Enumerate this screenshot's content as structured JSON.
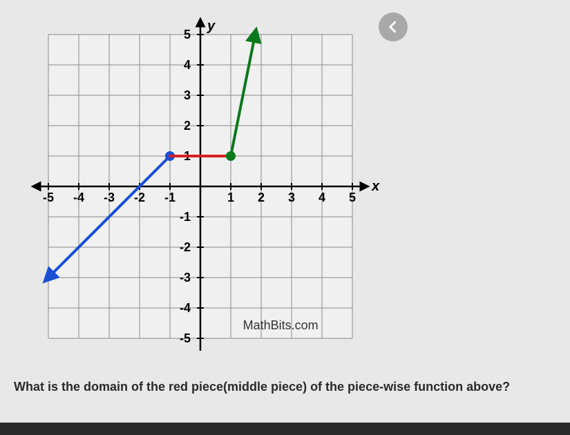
{
  "chart": {
    "type": "line",
    "xlim": [
      -5,
      5
    ],
    "ylim": [
      -5,
      5
    ],
    "xtick_step": 1,
    "ytick_step": 1,
    "x_axis_label": "x",
    "y_axis_label": "y",
    "grid_color": "#888888",
    "axis_color": "#000000",
    "background_color": "#f0f0f0",
    "watermark": "MathBits.com",
    "ticks_x": [
      "-5",
      "-4",
      "-3",
      "-2",
      "-1",
      "1",
      "2",
      "3",
      "4",
      "5"
    ],
    "ticks_y": [
      "5",
      "4",
      "3",
      "2",
      "1",
      "-1",
      "-2",
      "-3",
      "-4",
      "-5"
    ],
    "pieces": [
      {
        "name": "blue-piece",
        "color": "#1a4fd6",
        "line_width": 4,
        "points": [
          [
            -5,
            -3
          ],
          [
            -1,
            1
          ]
        ],
        "arrow_start": true,
        "closed_end": true,
        "end_point": [
          -1,
          1
        ],
        "endpoint_fill": "#1a4fd6",
        "endpoint_radius": 7
      },
      {
        "name": "red-piece",
        "color": "#d62020",
        "line_width": 4,
        "points": [
          [
            -1,
            1
          ],
          [
            1,
            1
          ]
        ]
      },
      {
        "name": "green-piece",
        "color": "#0a7a1a",
        "line_width": 4,
        "points": [
          [
            1,
            1
          ],
          [
            1.8,
            5
          ]
        ],
        "arrow_end": true,
        "closed_start": true,
        "start_point": [
          1,
          1
        ],
        "endpoint_fill": "#0a7a1a",
        "endpoint_radius": 7
      }
    ]
  },
  "nav": {
    "back_icon": "chevron-left"
  },
  "question": "What is the domain of the red piece(middle piece) of the piece-wise function above?"
}
